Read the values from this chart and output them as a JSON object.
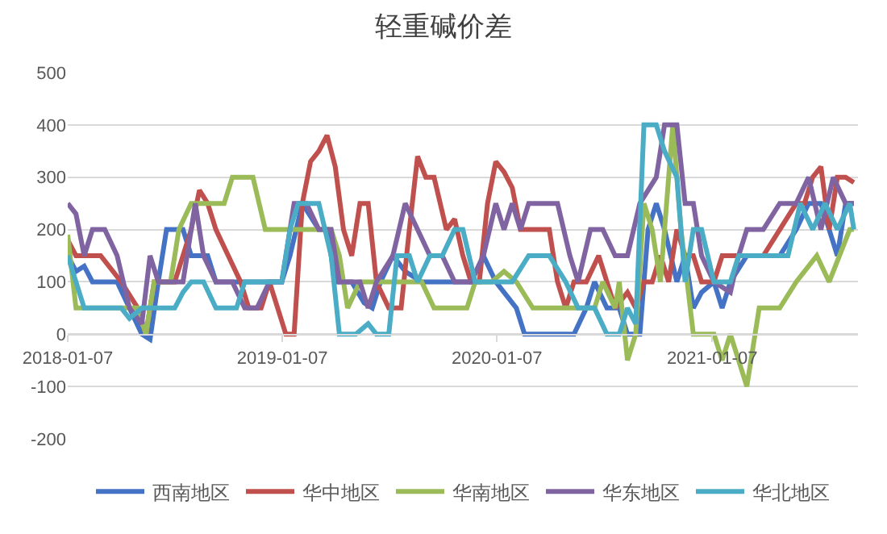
{
  "chart_data": {
    "type": "line",
    "title": "轻重碱价差",
    "xlim": [
      "2018-01-07",
      "2021-09-12"
    ],
    "xticks": [
      "2018-01-07",
      "2019-01-07",
      "2020-01-07",
      "2021-01-07"
    ],
    "ylim": [
      -200,
      500
    ],
    "yticks": [
      -200,
      -100,
      0,
      100,
      200,
      300,
      400,
      500
    ],
    "grid": "y",
    "legend": "bottom",
    "marker": "none",
    "line_style": "solid",
    "series": [
      {
        "name": "西南地区",
        "color": "#4472c4",
        "x": [
          "2018-01-07",
          "2018-01-21",
          "2018-02-04",
          "2018-02-18",
          "2018-04-01",
          "2018-04-22",
          "2018-05-13",
          "2018-05-27",
          "2018-06-10",
          "2018-06-24",
          "2018-07-22",
          "2018-08-05",
          "2018-09-02",
          "2018-09-16",
          "2019-01-06",
          "2019-01-20",
          "2019-02-10",
          "2019-03-10",
          "2019-03-24",
          "2019-04-07",
          "2019-05-05",
          "2019-05-26",
          "2019-06-09",
          "2019-06-23",
          "2019-07-14",
          "2019-08-04",
          "2019-09-01",
          "2019-10-06",
          "2019-11-24",
          "2019-12-15",
          "2020-01-05",
          "2020-02-09",
          "2020-02-23",
          "2020-04-05",
          "2020-05-17",
          "2020-06-07",
          "2020-06-21",
          "2020-07-12",
          "2020-08-02",
          "2020-08-16",
          "2020-09-06",
          "2020-09-20",
          "2020-10-04",
          "2020-10-18",
          "2020-11-08",
          "2020-11-22",
          "2020-12-06",
          "2020-12-20",
          "2021-01-10",
          "2021-01-24",
          "2021-02-07",
          "2021-03-07",
          "2021-04-04",
          "2021-05-02",
          "2021-05-30",
          "2021-06-20",
          "2021-07-11",
          "2021-07-25",
          "2021-08-08",
          "2021-08-22",
          "2021-09-05"
        ],
        "values": [
          150,
          120,
          130,
          100,
          100,
          50,
          0,
          -10,
          100,
          200,
          200,
          150,
          150,
          100,
          100,
          150,
          250,
          200,
          200,
          100,
          100,
          60,
          50,
          100,
          150,
          120,
          100,
          100,
          100,
          150,
          100,
          50,
          0,
          0,
          0,
          50,
          100,
          50,
          50,
          0,
          0,
          200,
          250,
          200,
          100,
          150,
          50,
          80,
          100,
          50,
          100,
          150,
          150,
          150,
          200,
          250,
          250,
          200,
          150,
          250,
          250
        ]
      },
      {
        "name": "华中地区",
        "color": "#c0504d",
        "x": [
          "2018-01-07",
          "2018-01-21",
          "2018-03-04",
          "2018-04-08",
          "2018-05-06",
          "2018-05-20",
          "2018-06-03",
          "2018-07-08",
          "2018-08-05",
          "2018-08-19",
          "2018-09-02",
          "2018-09-16",
          "2018-10-07",
          "2018-10-28",
          "2018-11-11",
          "2018-12-02",
          "2018-12-16",
          "2018-12-30",
          "2019-01-13",
          "2019-01-27",
          "2019-02-10",
          "2019-02-24",
          "2019-03-10",
          "2019-03-24",
          "2019-04-07",
          "2019-04-21",
          "2019-05-05",
          "2019-05-19",
          "2019-06-02",
          "2019-06-16",
          "2019-07-07",
          "2019-07-28",
          "2019-08-11",
          "2019-08-25",
          "2019-09-08",
          "2019-09-22",
          "2019-10-13",
          "2019-10-27",
          "2019-11-10",
          "2019-11-24",
          "2019-12-08",
          "2019-12-22",
          "2020-01-05",
          "2020-01-19",
          "2020-02-02",
          "2020-02-16",
          "2020-03-01",
          "2020-04-05",
          "2020-04-19",
          "2020-05-03",
          "2020-05-17",
          "2020-06-07",
          "2020-06-28",
          "2020-07-12",
          "2020-07-26",
          "2020-08-16",
          "2020-08-30",
          "2020-09-13",
          "2020-09-27",
          "2020-10-11",
          "2020-10-25",
          "2020-11-08",
          "2020-11-22",
          "2020-12-06",
          "2020-12-20",
          "2021-01-10",
          "2021-01-24",
          "2021-02-14",
          "2021-03-07",
          "2021-04-04",
          "2021-05-02",
          "2021-05-30",
          "2021-06-13",
          "2021-06-27",
          "2021-07-11",
          "2021-07-25",
          "2021-08-08",
          "2021-08-22",
          "2021-09-05"
        ],
        "values": [
          180,
          150,
          150,
          100,
          50,
          0,
          100,
          100,
          200,
          275,
          250,
          200,
          150,
          100,
          50,
          50,
          100,
          50,
          0,
          0,
          250,
          330,
          350,
          380,
          320,
          200,
          150,
          250,
          250,
          100,
          50,
          50,
          200,
          340,
          300,
          300,
          200,
          220,
          150,
          100,
          100,
          250,
          330,
          310,
          280,
          200,
          200,
          200,
          100,
          50,
          100,
          100,
          150,
          100,
          50,
          80,
          50,
          100,
          100,
          150,
          100,
          200,
          150,
          150,
          100,
          100,
          150,
          150,
          150,
          150,
          200,
          250,
          250,
          300,
          320,
          200,
          300,
          300,
          290
        ]
      },
      {
        "name": "华南地区",
        "color": "#9bbb59",
        "x": [
          "2018-01-07",
          "2018-01-21",
          "2018-04-15",
          "2018-05-06",
          "2018-05-20",
          "2018-06-03",
          "2018-07-01",
          "2018-07-15",
          "2018-08-05",
          "2018-09-30",
          "2018-10-14",
          "2018-11-18",
          "2018-12-09",
          "2019-03-31",
          "2019-04-14",
          "2019-04-28",
          "2019-05-19",
          "2019-09-01",
          "2019-09-22",
          "2019-11-17",
          "2019-12-01",
          "2019-12-29",
          "2020-01-19",
          "2020-02-09",
          "2020-03-08",
          "2020-06-21",
          "2020-07-05",
          "2020-07-26",
          "2020-08-02",
          "2020-08-16",
          "2020-08-30",
          "2020-09-13",
          "2020-09-27",
          "2020-10-11",
          "2020-11-01",
          "2020-11-15",
          "2020-12-06",
          "2021-01-10",
          "2021-01-24",
          "2021-02-07",
          "2021-03-07",
          "2021-03-28",
          "2021-05-02",
          "2021-05-30",
          "2021-07-04",
          "2021-07-25",
          "2021-08-29",
          "2021-09-05"
        ],
        "values": [
          190,
          50,
          50,
          50,
          0,
          100,
          100,
          200,
          250,
          250,
          300,
          300,
          200,
          200,
          150,
          50,
          100,
          100,
          50,
          50,
          100,
          100,
          120,
          100,
          50,
          50,
          100,
          50,
          100,
          -50,
          0,
          250,
          200,
          100,
          400,
          200,
          0,
          0,
          -50,
          0,
          -100,
          50,
          50,
          100,
          150,
          100,
          200,
          200
        ]
      },
      {
        "name": "华东地区",
        "color": "#8064a2",
        "x": [
          "2018-01-07",
          "2018-01-21",
          "2018-02-04",
          "2018-02-18",
          "2018-03-11",
          "2018-04-01",
          "2018-04-22",
          "2018-05-13",
          "2018-05-27",
          "2018-06-10",
          "2018-07-22",
          "2018-08-12",
          "2018-08-26",
          "2018-09-16",
          "2018-10-14",
          "2018-11-04",
          "2018-11-25",
          "2018-12-16",
          "2019-01-06",
          "2019-01-27",
          "2019-02-17",
          "2019-03-10",
          "2019-03-31",
          "2019-04-14",
          "2019-05-19",
          "2019-06-02",
          "2019-06-16",
          "2019-07-14",
          "2019-08-04",
          "2019-08-25",
          "2019-09-15",
          "2019-10-06",
          "2019-10-27",
          "2019-11-24",
          "2019-12-15",
          "2020-01-05",
          "2020-01-19",
          "2020-02-02",
          "2020-02-16",
          "2020-03-01",
          "2020-04-19",
          "2020-05-10",
          "2020-05-24",
          "2020-06-14",
          "2020-07-05",
          "2020-07-26",
          "2020-08-16",
          "2020-09-06",
          "2020-10-04",
          "2020-10-18",
          "2020-11-08",
          "2020-11-22",
          "2020-12-06",
          "2020-12-20",
          "2021-01-10",
          "2021-02-07",
          "2021-02-21",
          "2021-03-07",
          "2021-04-04",
          "2021-05-02",
          "2021-05-30",
          "2021-06-20",
          "2021-07-11",
          "2021-08-01",
          "2021-08-22",
          "2021-09-05"
        ],
        "values": [
          250,
          230,
          150,
          200,
          200,
          150,
          50,
          20,
          150,
          100,
          100,
          250,
          150,
          100,
          100,
          50,
          50,
          100,
          100,
          250,
          250,
          200,
          200,
          100,
          100,
          50,
          100,
          150,
          250,
          200,
          150,
          150,
          100,
          100,
          150,
          250,
          200,
          250,
          200,
          250,
          250,
          150,
          100,
          200,
          200,
          150,
          150,
          250,
          300,
          400,
          400,
          250,
          250,
          150,
          100,
          80,
          150,
          200,
          200,
          250,
          250,
          300,
          200,
          300,
          250,
          250
        ]
      },
      {
        "name": "华北地区",
        "color": "#4bacc6",
        "x": [
          "2018-01-07",
          "2018-01-21",
          "2018-02-04",
          "2018-04-08",
          "2018-04-22",
          "2018-05-13",
          "2018-07-08",
          "2018-07-22",
          "2018-08-05",
          "2018-08-26",
          "2018-09-16",
          "2018-10-21",
          "2018-11-04",
          "2019-01-06",
          "2019-01-20",
          "2019-02-03",
          "2019-03-10",
          "2019-03-31",
          "2019-04-14",
          "2019-05-12",
          "2019-06-02",
          "2019-06-16",
          "2019-07-07",
          "2019-07-21",
          "2019-08-11",
          "2019-08-25",
          "2019-09-15",
          "2019-10-06",
          "2019-10-27",
          "2019-11-10",
          "2019-12-01",
          "2020-02-02",
          "2020-03-01",
          "2020-04-05",
          "2020-05-03",
          "2020-05-24",
          "2020-06-21",
          "2020-07-12",
          "2020-08-02",
          "2020-08-16",
          "2020-08-30",
          "2020-09-13",
          "2020-10-04",
          "2020-10-18",
          "2020-11-08",
          "2020-11-22",
          "2020-12-06",
          "2020-12-20",
          "2021-01-10",
          "2021-02-07",
          "2021-02-21",
          "2021-05-16",
          "2021-06-06",
          "2021-06-27",
          "2021-07-18",
          "2021-08-08",
          "2021-08-29",
          "2021-09-05"
        ],
        "values": [
          150,
          100,
          50,
          50,
          30,
          50,
          50,
          80,
          100,
          100,
          50,
          50,
          100,
          100,
          200,
          250,
          250,
          150,
          0,
          0,
          20,
          0,
          0,
          150,
          150,
          100,
          150,
          150,
          200,
          200,
          100,
          100,
          150,
          150,
          100,
          50,
          50,
          0,
          0,
          50,
          20,
          400,
          400,
          350,
          300,
          100,
          200,
          200,
          100,
          100,
          150,
          150,
          250,
          200,
          250,
          200,
          250,
          200
        ]
      }
    ]
  }
}
